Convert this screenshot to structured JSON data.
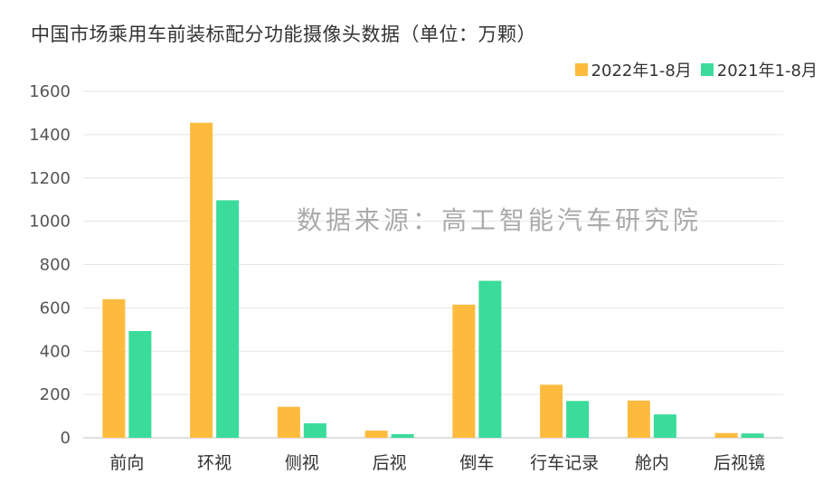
{
  "title": "中国市场乘用车前装标配分功能摄像头数据（单位：万颗）",
  "watermark": "数据来源：高工智能汽车研究院",
  "colors": {
    "series_2022": "#FDBB3E",
    "series_2021": "#3BDB9B",
    "grid": "#e6e6e6",
    "axis": "#bfbfbf",
    "tick_text": "#555555"
  },
  "chart_data": {
    "type": "bar",
    "categories": [
      "前向",
      "环视",
      "侧视",
      "后视",
      "倒车",
      "行车记录",
      "舱内",
      "后视镜"
    ],
    "series": [
      {
        "name": "2022年1-8月",
        "values": [
          640,
          1455,
          143,
          33,
          615,
          245,
          172,
          22
        ]
      },
      {
        "name": "2021年1-8月",
        "values": [
          493,
          1097,
          67,
          17,
          725,
          170,
          108,
          20
        ]
      }
    ],
    "yticks": [
      0,
      200,
      400,
      600,
      800,
      1000,
      1200,
      1400,
      1600
    ],
    "ylim": [
      0,
      1600
    ],
    "grid": true,
    "legend": "top-right"
  }
}
